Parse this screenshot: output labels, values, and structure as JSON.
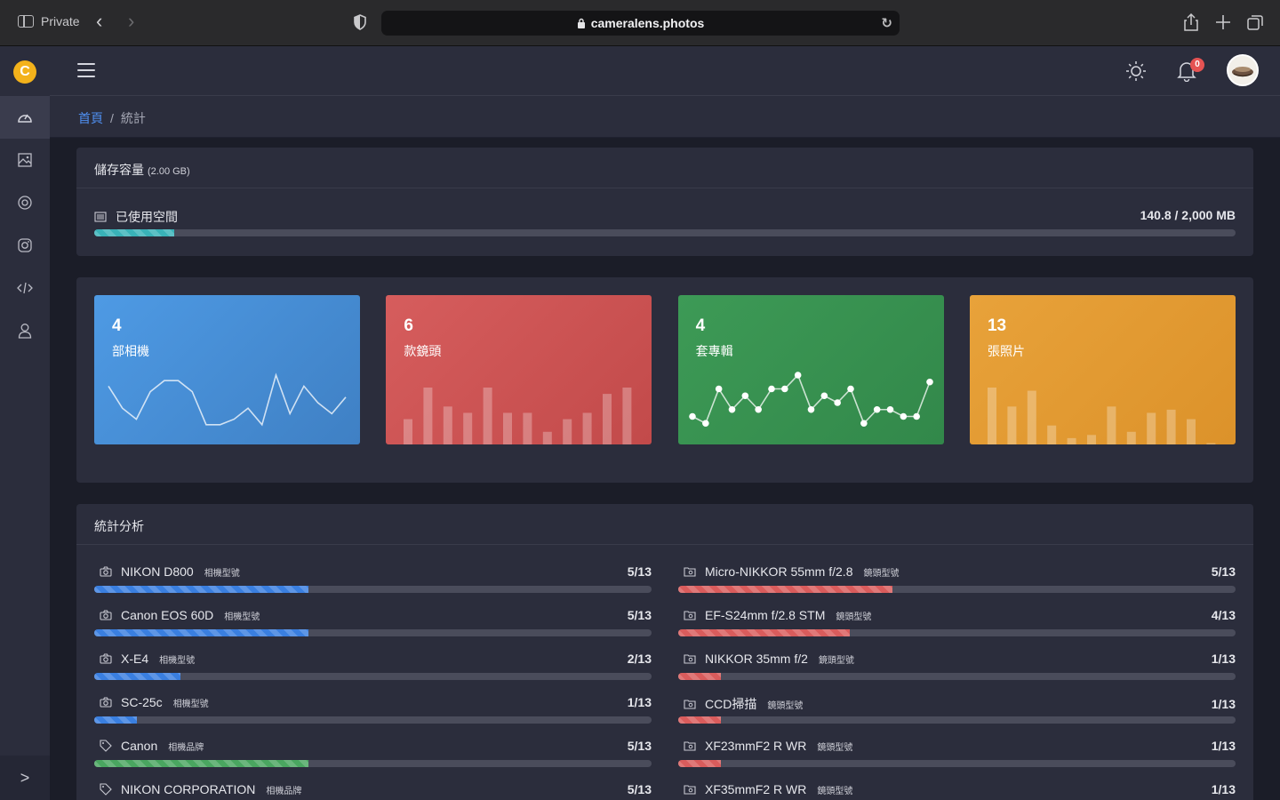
{
  "browser": {
    "private_label": "Private",
    "url": "cameralens.photos"
  },
  "sidebar": {
    "logo_letter": "C",
    "items": [
      {
        "icon": "speedometer-icon",
        "active": true
      },
      {
        "icon": "image-icon",
        "active": false
      },
      {
        "icon": "lens-icon",
        "active": false
      },
      {
        "icon": "instagram-icon",
        "active": false
      },
      {
        "icon": "code-icon",
        "active": false
      },
      {
        "icon": "user-icon",
        "active": false
      }
    ]
  },
  "header": {
    "notification_count": "0"
  },
  "breadcrumb": {
    "home": "首頁",
    "separator": "/",
    "current": "統計"
  },
  "storage": {
    "title": "儲存容量",
    "capacity": "(2.00 GB)",
    "used_label": "已使用空間",
    "used_value": "140.8 / 2,000 MB",
    "used_fraction": 0.0704,
    "bar_color": "#39b2b8"
  },
  "tiles": [
    {
      "count": "4",
      "label": "部相機",
      "color_from": "#4e9ae4",
      "color_to": "#3f80c4",
      "chart": "line",
      "values": [
        8,
        4,
        2,
        7,
        9,
        9,
        7,
        1,
        1,
        2,
        4,
        1,
        10,
        3,
        8,
        5,
        3,
        6
      ]
    },
    {
      "count": "6",
      "label": "款鏡頭",
      "color_from": "#d65d5d",
      "color_to": "#c24a4a",
      "chart": "bar",
      "values": [
        4,
        9,
        6,
        5,
        9,
        5,
        5,
        2,
        4,
        5,
        8,
        9
      ]
    },
    {
      "count": "4",
      "label": "套專輯",
      "color_from": "#3d9a56",
      "color_to": "#32884a",
      "chart": "dots",
      "values": [
        2,
        1,
        6,
        3,
        5,
        3,
        6,
        6,
        8,
        3,
        5,
        4,
        6,
        1,
        3,
        3,
        2,
        2,
        7
      ]
    },
    {
      "count": "13",
      "label": "張照片",
      "color_from": "#e8a23a",
      "color_to": "#dc922a",
      "chart": "bar",
      "values": [
        9,
        6,
        8.5,
        3,
        1,
        1.5,
        6,
        2,
        5,
        5.5,
        4,
        0.2
      ]
    }
  ],
  "stats": {
    "title": "統計分析",
    "left": [
      {
        "icon": "camera-icon",
        "name": "NIKON D800",
        "tag": "相機型號",
        "value": "5/13",
        "fraction": 0.385,
        "color": "#3a7fe0"
      },
      {
        "icon": "camera-icon",
        "name": "Canon EOS 60D",
        "tag": "相機型號",
        "value": "5/13",
        "fraction": 0.385,
        "color": "#3a7fe0"
      },
      {
        "icon": "camera-icon",
        "name": "X-E4",
        "tag": "相機型號",
        "value": "2/13",
        "fraction": 0.154,
        "color": "#3a7fe0"
      },
      {
        "icon": "camera-icon",
        "name": "SC-25c",
        "tag": "相機型號",
        "value": "1/13",
        "fraction": 0.077,
        "color": "#3a7fe0"
      },
      {
        "icon": "tag-icon",
        "name": "Canon",
        "tag": "相機品牌",
        "value": "5/13",
        "fraction": 0.385,
        "color": "#4aa660"
      },
      {
        "icon": "tag-icon",
        "name": "NIKON CORPORATION",
        "tag": "相機品牌",
        "value": "5/13",
        "fraction": 0.385,
        "color": "#4aa660"
      }
    ],
    "right": [
      {
        "icon": "lens-folder-icon",
        "name": "Micro-NIKKOR 55mm f/2.8",
        "tag": "鏡頭型號",
        "value": "5/13",
        "fraction": 0.385,
        "color": "#d95c5c"
      },
      {
        "icon": "lens-folder-icon",
        "name": "EF-S24mm f/2.8 STM",
        "tag": "鏡頭型號",
        "value": "4/13",
        "fraction": 0.308,
        "color": "#d95c5c"
      },
      {
        "icon": "lens-folder-icon",
        "name": "NIKKOR 35mm f/2",
        "tag": "鏡頭型號",
        "value": "1/13",
        "fraction": 0.077,
        "color": "#d95c5c"
      },
      {
        "icon": "lens-folder-icon",
        "name": "CCD掃描",
        "tag": "鏡頭型號",
        "value": "1/13",
        "fraction": 0.077,
        "color": "#d95c5c"
      },
      {
        "icon": "lens-folder-icon",
        "name": "XF23mmF2 R WR",
        "tag": "鏡頭型號",
        "value": "1/13",
        "fraction": 0.077,
        "color": "#d95c5c"
      },
      {
        "icon": "lens-folder-icon",
        "name": "XF35mmF2 R WR",
        "tag": "鏡頭型號",
        "value": "1/13",
        "fraction": 0.077,
        "color": "#d95c5c"
      }
    ]
  }
}
